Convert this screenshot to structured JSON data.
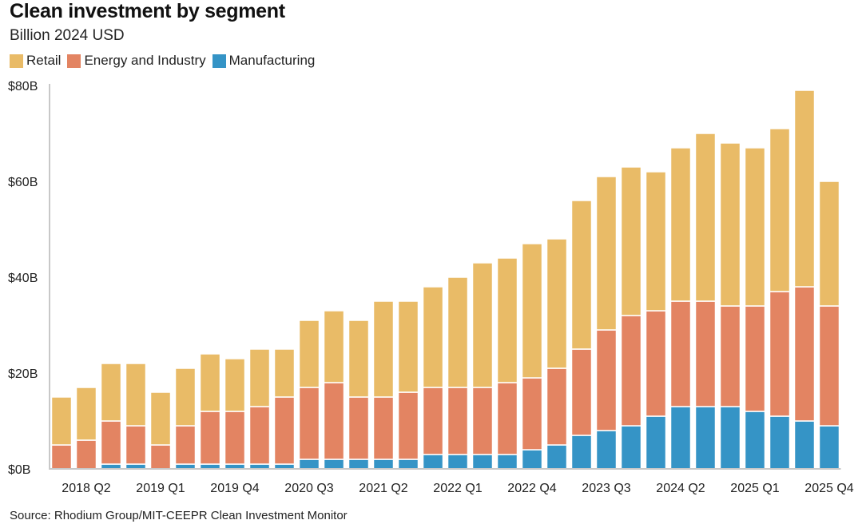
{
  "chart_data": {
    "type": "bar",
    "stacked": true,
    "title": "Clean investment by segment",
    "subtitle": "Billion 2024 USD",
    "source": "Source: Rhodium Group/MIT-CEEPR Clean Investment Monitor",
    "xlabel": "",
    "ylabel": "",
    "ylim": [
      0,
      80
    ],
    "yticks": [
      0,
      20,
      40,
      60,
      80
    ],
    "ytick_labels": [
      "$0B",
      "$20B",
      "$40B",
      "$60B",
      "$80B"
    ],
    "grid": false,
    "legend_position": "top-left",
    "categories": [
      "2018 Q1",
      "2018 Q2",
      "2018 Q3",
      "2018 Q4",
      "2019 Q1",
      "2019 Q2",
      "2019 Q3",
      "2019 Q4",
      "2020 Q1",
      "2020 Q2",
      "2020 Q3",
      "2020 Q4",
      "2021 Q1",
      "2021 Q2",
      "2021 Q3",
      "2021 Q4",
      "2022 Q1",
      "2022 Q2",
      "2022 Q3",
      "2022 Q4",
      "2023 Q1",
      "2023 Q2",
      "2023 Q3",
      "2023 Q4",
      "2024 Q1",
      "2024 Q2",
      "2024 Q3",
      "2024 Q4",
      "2025 Q1",
      "2025 Q2",
      "2025 Q3",
      "2025 Q4"
    ],
    "xtick_labels": [
      "2018 Q2",
      "2019 Q1",
      "2019 Q4",
      "2020 Q3",
      "2021 Q2",
      "2022 Q1",
      "2022 Q4",
      "2023 Q3",
      "2024 Q2",
      "2025 Q1",
      "2025 Q4"
    ],
    "series": [
      {
        "name": "Manufacturing",
        "color": "#3594C6",
        "values": [
          0,
          0,
          1,
          1,
          0,
          1,
          1,
          1,
          1,
          1,
          2,
          2,
          2,
          2,
          2,
          3,
          3,
          3,
          3,
          4,
          5,
          7,
          8,
          9,
          11,
          13,
          13,
          13,
          12,
          11,
          10,
          9
        ]
      },
      {
        "name": "Energy and Industry",
        "color": "#E38462",
        "values": [
          5,
          6,
          9,
          8,
          5,
          8,
          11,
          11,
          12,
          14,
          15,
          16,
          13,
          13,
          14,
          14,
          14,
          14,
          15,
          15,
          16,
          18,
          21,
          23,
          22,
          22,
          22,
          21,
          22,
          26,
          28,
          25
        ]
      },
      {
        "name": "Retail",
        "color": "#E9BB67",
        "values": [
          10,
          11,
          12,
          13,
          11,
          12,
          12,
          11,
          12,
          10,
          14,
          15,
          16,
          20,
          19,
          21,
          23,
          26,
          26,
          28,
          27,
          31,
          32,
          31,
          29,
          32,
          35,
          34,
          33,
          34,
          41,
          26
        ]
      }
    ],
    "legend_order": [
      "Retail",
      "Energy and Industry",
      "Manufacturing"
    ]
  }
}
